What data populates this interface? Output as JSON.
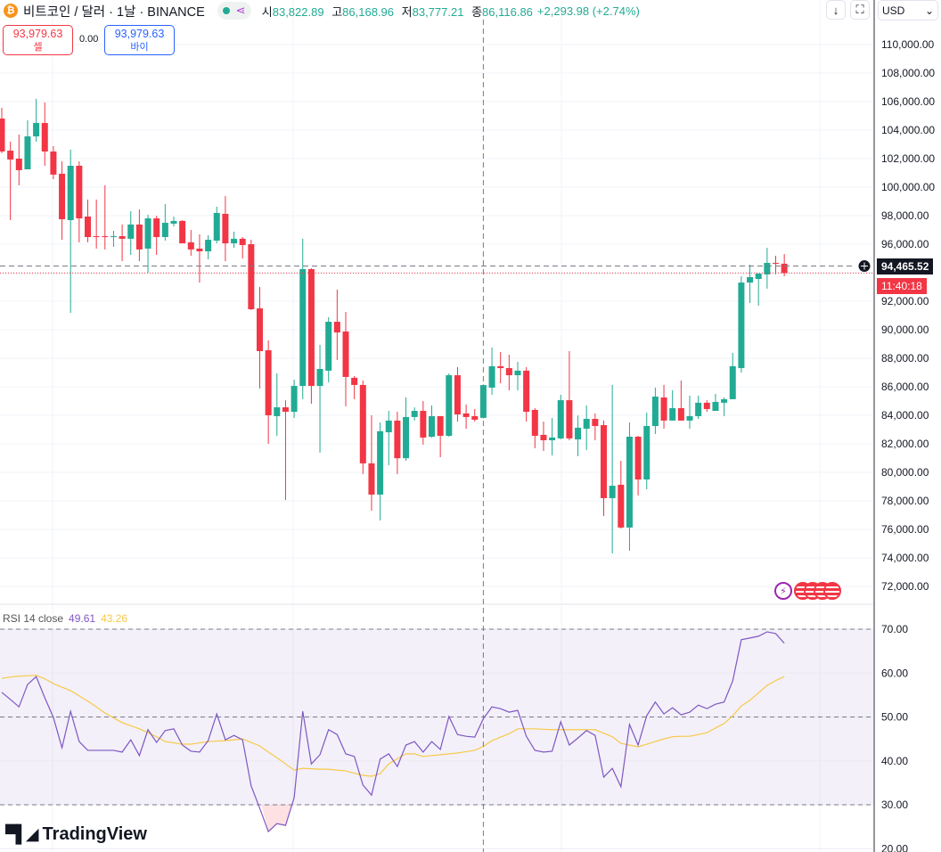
{
  "header": {
    "title": "비트코인 / 달러 · 1날 · BINANCE",
    "ohlc": [
      {
        "k": "시",
        "v": "83,822.89"
      },
      {
        "k": "고",
        "v": "86,168.96"
      },
      {
        "k": "저",
        "v": "83,777.21"
      },
      {
        "k": "종",
        "v": "86,116.86"
      }
    ],
    "change": "+2,293.98 (+2.74%)"
  },
  "trade": {
    "sell_price": "93,979.63",
    "sell_label": "셀",
    "spread": "0.00",
    "buy_price": "93,979.63",
    "buy_label": "바이"
  },
  "toolbar": {
    "down_icon": "↓",
    "fullscreen_icon": "⛶",
    "currency": "USD"
  },
  "price_axis": {
    "labels": [
      "110,000.00",
      "108,000.00",
      "106,000.00",
      "104,000.00",
      "102,000.00",
      "100,000.00",
      "98,000.00",
      "96,000.00",
      "92,000.00",
      "90,000.00",
      "88,000.00",
      "86,000.00",
      "84,000.00",
      "82,000.00",
      "80,000.00",
      "78,000.00",
      "76,000.00",
      "74,000.00",
      "72,000.00"
    ],
    "values": [
      110000,
      108000,
      106000,
      104000,
      102000,
      100000,
      98000,
      96000,
      92000,
      90000,
      88000,
      86000,
      84000,
      82000,
      80000,
      78000,
      76000,
      74000,
      72000
    ],
    "crosshair_price": "94,465.52",
    "crosshair_value": 94465.52,
    "last_price_value": 93979.63,
    "countdown": "11:40:18"
  },
  "rsi": {
    "label": "RSI 14 close",
    "value": "49.61",
    "ma_value": "43.26",
    "axis_labels": [
      "70.00",
      "60.00",
      "50.00",
      "40.00",
      "30.00",
      "20.00"
    ],
    "axis_values": [
      70,
      60,
      50,
      40,
      30,
      20
    ]
  },
  "logo": "TradingView",
  "colors": {
    "up": "#22ab94",
    "down": "#f23645",
    "rsi": "#7e57c2",
    "ma": "#f7c948"
  },
  "chart_data": {
    "type": "candlestick",
    "ylim": [
      71000,
      111500
    ],
    "ohlc": [
      [
        104810,
        105560,
        102380,
        102500
      ],
      [
        102560,
        103190,
        97690,
        101940
      ],
      [
        102000,
        103690,
        100130,
        101190
      ],
      [
        101250,
        104690,
        101250,
        103560
      ],
      [
        103560,
        106190,
        103190,
        104500
      ],
      [
        104500,
        105940,
        101500,
        102500
      ],
      [
        102500,
        102880,
        100560,
        100880
      ],
      [
        100940,
        101810,
        96310,
        97750
      ],
      [
        97690,
        102630,
        91190,
        101500
      ],
      [
        101500,
        101810,
        96130,
        97810
      ],
      [
        97940,
        99130,
        96130,
        96500
      ],
      [
        96560,
        99130,
        95690,
        96540
      ],
      [
        96560,
        100130,
        95630,
        96540
      ],
      [
        96500,
        96940,
        95810,
        96560
      ],
      [
        96560,
        97380,
        94810,
        96380
      ],
      [
        96380,
        98310,
        95250,
        97380
      ],
      [
        97380,
        98440,
        94810,
        95630
      ],
      [
        95690,
        98060,
        94000,
        97810
      ],
      [
        97810,
        98000,
        95250,
        96500
      ],
      [
        96500,
        98810,
        96250,
        97500
      ],
      [
        97440,
        97940,
        97250,
        97630
      ],
      [
        97630,
        97690,
        96060,
        96060
      ],
      [
        96130,
        97000,
        95190,
        95630
      ],
      [
        95690,
        96690,
        93310,
        95500
      ],
      [
        95500,
        96630,
        94940,
        96310
      ],
      [
        96250,
        98630,
        96060,
        98190
      ],
      [
        98130,
        99380,
        94810,
        96060
      ],
      [
        96060,
        96880,
        95750,
        96380
      ],
      [
        96380,
        96500,
        95000,
        95940
      ],
      [
        96000,
        96310,
        91380,
        91440
      ],
      [
        91500,
        93000,
        85880,
        88500
      ],
      [
        88560,
        89250,
        82000,
        84000
      ],
      [
        83940,
        86940,
        82560,
        84560
      ],
      [
        84560,
        85060,
        78060,
        84250
      ],
      [
        84250,
        86500,
        83810,
        86060
      ],
      [
        86060,
        96380,
        85130,
        94250
      ],
      [
        94250,
        94310,
        84810,
        86060
      ],
      [
        86060,
        88940,
        81380,
        87250
      ],
      [
        87130,
        90880,
        86310,
        90560
      ],
      [
        90560,
        92810,
        87880,
        89810
      ],
      [
        89880,
        91250,
        84630,
        86690
      ],
      [
        86630,
        86750,
        85130,
        86130
      ],
      [
        86130,
        86440,
        79880,
        80630
      ],
      [
        80630,
        84000,
        77310,
        78440
      ],
      [
        78440,
        83500,
        76630,
        82880
      ],
      [
        82810,
        84310,
        80500,
        83630
      ],
      [
        83630,
        84250,
        79880,
        80990
      ],
      [
        80990,
        85250,
        80810,
        83880
      ],
      [
        83880,
        84560,
        83630,
        84310
      ],
      [
        84310,
        85000,
        81940,
        82440
      ],
      [
        82500,
        84690,
        82440,
        83940
      ],
      [
        83940,
        83940,
        81060,
        82560
      ],
      [
        82560,
        86940,
        82500,
        86810
      ],
      [
        86810,
        87380,
        83560,
        84060
      ],
      [
        84130,
        84750,
        83060,
        83880
      ],
      [
        83940,
        84440,
        83560,
        83690
      ],
      [
        83820,
        86170,
        83780,
        86120
      ],
      [
        85940,
        88750,
        85440,
        87440
      ],
      [
        87440,
        88440,
        86250,
        87310
      ],
      [
        87310,
        88250,
        85750,
        86810
      ],
      [
        86810,
        87750,
        85750,
        87130
      ],
      [
        87130,
        87380,
        83560,
        84250
      ],
      [
        84380,
        84500,
        81690,
        82560
      ],
      [
        82630,
        83560,
        81500,
        82250
      ],
      [
        82250,
        83810,
        81190,
        82440
      ],
      [
        82380,
        85440,
        82310,
        85060
      ],
      [
        85060,
        88500,
        82250,
        82380
      ],
      [
        82310,
        83990,
        81130,
        83130
      ],
      [
        83060,
        84690,
        81560,
        83750
      ],
      [
        83750,
        84130,
        82250,
        83250
      ],
      [
        83310,
        83630,
        76940,
        78190
      ],
      [
        78190,
        86130,
        74310,
        79060
      ],
      [
        79130,
        80810,
        76060,
        76130
      ],
      [
        76130,
        83500,
        74500,
        82500
      ],
      [
        82500,
        82560,
        78380,
        79500
      ],
      [
        79500,
        84190,
        78810,
        83250
      ],
      [
        83250,
        85940,
        82690,
        85310
      ],
      [
        85250,
        86130,
        83060,
        83630
      ],
      [
        83630,
        85750,
        83630,
        84500
      ],
      [
        84500,
        86440,
        83630,
        83630
      ],
      [
        83630,
        85380,
        83060,
        83940
      ],
      [
        83940,
        85380,
        83750,
        84880
      ],
      [
        84880,
        85060,
        84250,
        84440
      ],
      [
        84310,
        85500,
        84310,
        84940
      ],
      [
        84880,
        85250,
        83940,
        85130
      ],
      [
        85130,
        88380,
        85130,
        87440
      ],
      [
        87310,
        93750,
        86990,
        93310
      ],
      [
        93310,
        94560,
        91880,
        93690
      ],
      [
        93560,
        93940,
        91690,
        93940
      ],
      [
        93880,
        95750,
        92880,
        94690
      ],
      [
        94690,
        95190,
        93880,
        94630
      ],
      [
        94630,
        95310,
        93750,
        93980
      ]
    ],
    "rsi": [
      55.6,
      54.0,
      52.3,
      57.4,
      59.2,
      54.4,
      49.9,
      43.0,
      51.3,
      44.4,
      42.4,
      42.4,
      42.4,
      42.4,
      42.0,
      44.8,
      41.2,
      47.1,
      44.2,
      46.9,
      47.3,
      43.6,
      42.2,
      42.0,
      44.6,
      50.7,
      44.8,
      45.8,
      44.8,
      34.3,
      29.2,
      23.9,
      25.7,
      25.3,
      31.6,
      51.3,
      39.3,
      41.4,
      47.1,
      46.0,
      41.6,
      41.0,
      34.5,
      32.2,
      40.4,
      41.6,
      38.7,
      43.6,
      44.4,
      42.0,
      44.4,
      42.6,
      50.1,
      46.0,
      45.6,
      45.4,
      49.6,
      52.3,
      51.9,
      51.1,
      51.5,
      45.6,
      42.4,
      42.0,
      42.2,
      48.9,
      43.6,
      45.2,
      46.9,
      45.8,
      36.3,
      38.3,
      34.1,
      48.3,
      43.6,
      50.3,
      53.4,
      50.7,
      52.1,
      50.5,
      51.1,
      52.7,
      51.9,
      52.9,
      53.4,
      58.2,
      67.6,
      68.0,
      68.4,
      69.4,
      69.0,
      66.8
    ],
    "rsi_ma": [
      58.8,
      59.1,
      59.3,
      59.4,
      59.5,
      58.7,
      57.6,
      56.8,
      56.0,
      54.8,
      53.6,
      52.3,
      50.9,
      49.8,
      48.7,
      48.0,
      47.3,
      46.4,
      45.5,
      44.4,
      44.1,
      43.8,
      43.8,
      44.1,
      44.4,
      44.5,
      44.6,
      44.8,
      45.0,
      44.2,
      43.4,
      42.0,
      40.7,
      39.3,
      37.9,
      38.3,
      38.2,
      38.1,
      38.1,
      37.9,
      37.7,
      37.2,
      36.7,
      36.5,
      37.1,
      39.3,
      40.5,
      41.6,
      41.6,
      41.0,
      41.2,
      41.4,
      41.6,
      41.8,
      42.1,
      42.4,
      43.3,
      44.6,
      45.4,
      46.2,
      47.3,
      47.3,
      47.3,
      47.2,
      47.1,
      47.1,
      47.1,
      47.1,
      47.1,
      47.1,
      46.3,
      45.5,
      44.0,
      43.6,
      43.2,
      43.8,
      44.4,
      45.0,
      45.5,
      45.6,
      45.6,
      46.0,
      46.4,
      47.5,
      48.5,
      50.3,
      52.5,
      53.8,
      55.5,
      57.2,
      58.3,
      59.2
    ],
    "rsi_levels": [
      70,
      50,
      30
    ],
    "crosshair_index": 56
  }
}
